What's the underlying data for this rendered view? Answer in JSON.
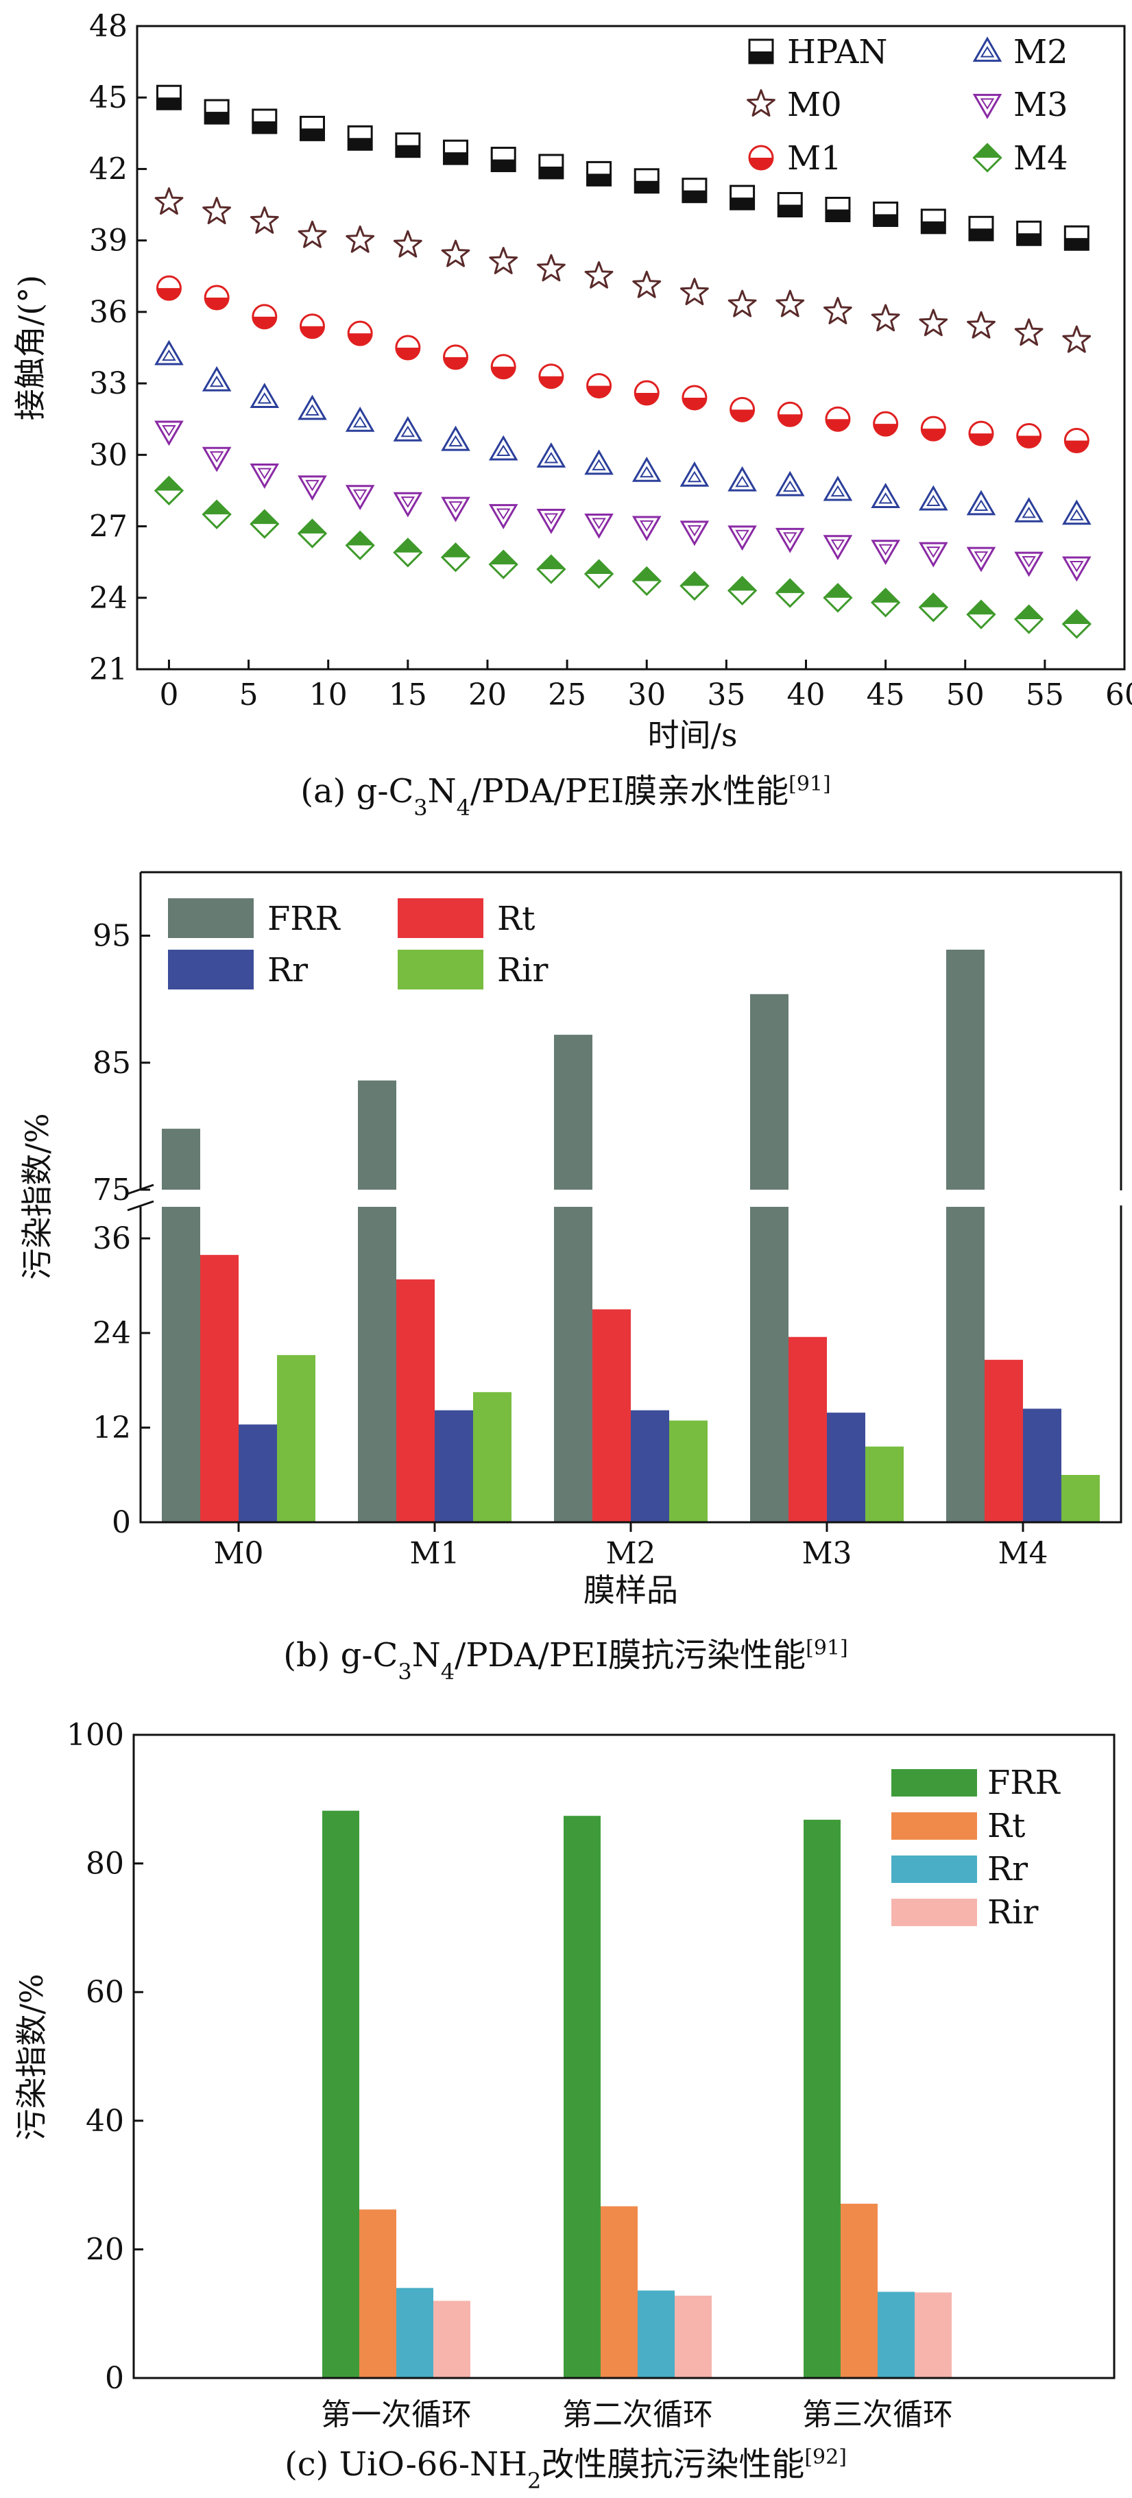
{
  "chart_data": [
    {
      "id": "a",
      "type": "scatter",
      "caption": {
        "prefix": "(a) g-C",
        "sub1": "3",
        "mid1": "N",
        "sub2": "4",
        "mid2": "/PDA/PEI膜亲水性能",
        "sup": "[91]"
      },
      "xlabel": "时间/s",
      "ylabel": "接触角/(°)",
      "xlim": [
        -2,
        60
      ],
      "ylim": [
        21,
        48
      ],
      "xticks": [
        0,
        5,
        10,
        15,
        20,
        25,
        30,
        35,
        40,
        45,
        50,
        55,
        60
      ],
      "yticks": [
        21,
        24,
        27,
        30,
        33,
        36,
        39,
        42,
        45,
        48
      ],
      "x": [
        0,
        3,
        6,
        9,
        12,
        15,
        18,
        21,
        24,
        27,
        30,
        33,
        36,
        39,
        42,
        45,
        48,
        51,
        54,
        57
      ],
      "series": [
        {
          "name": "HPAN",
          "marker": "square-half",
          "color": "#111111",
          "values": [
            45.0,
            44.4,
            44.0,
            43.7,
            43.3,
            43.0,
            42.7,
            42.4,
            42.1,
            41.8,
            41.5,
            41.1,
            40.8,
            40.5,
            40.3,
            40.1,
            39.8,
            39.5,
            39.3,
            39.1
          ]
        },
        {
          "name": "M0",
          "marker": "star",
          "color": "#5a2a2a",
          "values": [
            40.6,
            40.2,
            39.8,
            39.2,
            39.0,
            38.8,
            38.4,
            38.1,
            37.8,
            37.5,
            37.1,
            36.8,
            36.3,
            36.3,
            36.0,
            35.7,
            35.5,
            35.4,
            35.1,
            34.8
          ]
        },
        {
          "name": "M1",
          "marker": "circle-half",
          "color": "#e02020",
          "values": [
            37.0,
            36.6,
            35.8,
            35.4,
            35.1,
            34.5,
            34.1,
            33.7,
            33.3,
            32.9,
            32.6,
            32.4,
            31.9,
            31.7,
            31.5,
            31.3,
            31.1,
            30.9,
            30.8,
            30.6
          ]
        },
        {
          "name": "M2",
          "marker": "triangle-up",
          "color": "#2b3f9a",
          "values": [
            34.2,
            33.1,
            32.4,
            31.9,
            31.4,
            31.0,
            30.6,
            30.2,
            29.9,
            29.6,
            29.3,
            29.1,
            28.9,
            28.7,
            28.5,
            28.2,
            28.1,
            27.9,
            27.6,
            27.5
          ]
        },
        {
          "name": "M3",
          "marker": "triangle-down",
          "color": "#8a2aa5",
          "values": [
            31.0,
            29.9,
            29.2,
            28.7,
            28.3,
            28.0,
            27.8,
            27.5,
            27.3,
            27.1,
            27.0,
            26.8,
            26.6,
            26.5,
            26.2,
            26.0,
            25.9,
            25.7,
            25.5,
            25.3
          ]
        },
        {
          "name": "M4",
          "marker": "diamond-half",
          "color": "#3f9a2b",
          "values": [
            28.5,
            27.5,
            27.1,
            26.7,
            26.2,
            25.9,
            25.7,
            25.4,
            25.2,
            25.0,
            24.7,
            24.5,
            24.3,
            24.2,
            24.0,
            23.8,
            23.6,
            23.3,
            23.1,
            22.9
          ]
        }
      ],
      "legend": "top-right"
    },
    {
      "id": "b",
      "type": "bar",
      "caption": {
        "prefix": "(b) g-C",
        "sub1": "3",
        "mid1": "N",
        "sub2": "4",
        "mid2": "/PDA/PEI膜抗污染性能",
        "sup": "[91]"
      },
      "xlabel": "膜样品",
      "ylabel": "污染指数/%",
      "categories": [
        "M0",
        "M1",
        "M2",
        "M3",
        "M4"
      ],
      "broken_axis": {
        "lower": [
          0,
          40
        ],
        "upper": [
          75,
          100
        ]
      },
      "yticks_lower": [
        0,
        12,
        24,
        36
      ],
      "yticks_upper": [
        75,
        85,
        95
      ],
      "series": [
        {
          "name": "FRR",
          "color": "#667b72",
          "values": [
            79.8,
            83.6,
            87.2,
            90.4,
            93.9
          ]
        },
        {
          "name": "Rt",
          "color": "#e8353a",
          "values": [
            33.9,
            30.8,
            27.0,
            23.5,
            20.6
          ]
        },
        {
          "name": "Rr",
          "color": "#3d4d9a",
          "values": [
            12.4,
            14.2,
            14.2,
            13.9,
            14.4
          ]
        },
        {
          "name": "Rir",
          "color": "#78bd3f",
          "values": [
            21.2,
            16.5,
            12.9,
            9.6,
            6.0
          ]
        }
      ],
      "legend": "top-left"
    },
    {
      "id": "c",
      "type": "bar",
      "caption": {
        "prefix": "(c) UiO-66-NH",
        "sub1": "2",
        "mid1": "改性膜抗污染性能",
        "sup": "[92]"
      },
      "xlabel": "",
      "ylabel": "污染指数/%",
      "categories": [
        "第一次循环",
        "第二次循环",
        "第三次循环"
      ],
      "ylim": [
        0,
        100
      ],
      "yticks": [
        0,
        20,
        40,
        60,
        80,
        100
      ],
      "series": [
        {
          "name": "FRR",
          "color": "#3f9b3a",
          "values": [
            88.2,
            87.4,
            86.8
          ]
        },
        {
          "name": "Rt",
          "color": "#f08a4b",
          "values": [
            26.2,
            26.7,
            27.1
          ]
        },
        {
          "name": "Rr",
          "color": "#4aaec6",
          "values": [
            14.0,
            13.6,
            13.4
          ]
        },
        {
          "name": "Rir",
          "color": "#f6b4ad",
          "values": [
            12.0,
            12.8,
            13.3
          ]
        }
      ],
      "legend": "top-right"
    }
  ]
}
